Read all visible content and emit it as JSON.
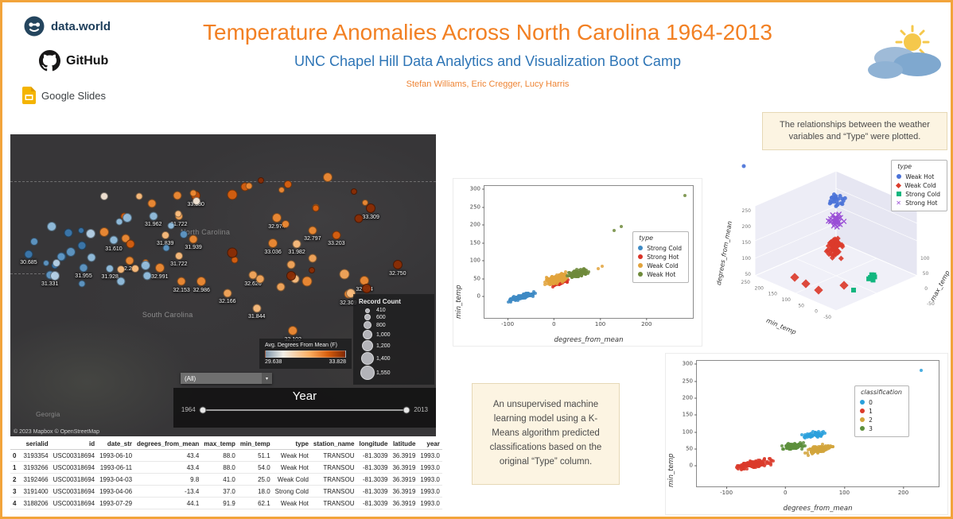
{
  "header": {
    "title": "Temperature Anomalies Across North Carolina 1964-2013",
    "subtitle": "UNC Chapel Hill Data Analytics and Visualization Boot Camp",
    "authors": "Stefan Williams, Eric Cregger, Lucy Harris"
  },
  "logos": {
    "dataworld": "data.world",
    "github": "GitHub",
    "google_slides": "Google Slides"
  },
  "notes": {
    "plot_note": "The relationships between the weather variables and “Type” were plotted.",
    "kmeans_note": "An unsupervised machine learning model using a K-Means algorithm predicted classifications based on the original “Type” column."
  },
  "map": {
    "attribution": "© 2023 Mapbox © OpenStreetMap",
    "labels": {
      "north_carolina": "North Carolina",
      "south_carolina": "South Carolina",
      "georgia": "Georgia"
    },
    "filter_value": "(All)",
    "slider": {
      "title": "Year",
      "min": "1964",
      "max": "2013"
    }
  },
  "table": {
    "columns": [
      "",
      "serialid",
      "id",
      "date_str",
      "degrees_from_mean",
      "max_temp",
      "min_temp",
      "type",
      "station_name",
      "longitude",
      "latitude",
      "year"
    ],
    "rows": [
      [
        "0",
        "3193354",
        "USC00318694",
        "1993-06-10",
        "43.4",
        "88.0",
        "51.1",
        "Weak Hot",
        "TRANSOU",
        "-81.3039",
        "36.3919",
        "1993.0"
      ],
      [
        "1",
        "3193266",
        "USC00318694",
        "1993-06-11",
        "43.4",
        "88.0",
        "54.0",
        "Weak Hot",
        "TRANSOU",
        "-81.3039",
        "36.3919",
        "1993.0"
      ],
      [
        "2",
        "3192466",
        "USC00318694",
        "1993-04-03",
        "9.8",
        "41.0",
        "25.0",
        "Weak Cold",
        "TRANSOU",
        "-81.3039",
        "36.3919",
        "1993.0"
      ],
      [
        "3",
        "3191400",
        "USC00318694",
        "1993-04-06",
        "-13.4",
        "37.0",
        "18.0",
        "Strong Cold",
        "TRANSOU",
        "-81.3039",
        "36.3919",
        "1993.0"
      ],
      [
        "4",
        "3188206",
        "USC00318694",
        "1993-07-29",
        "44.1",
        "91.9",
        "62.1",
        "Weak Hot",
        "TRANSOU",
        "-81.3039",
        "36.3919",
        "1993.0"
      ]
    ]
  },
  "chart_data": [
    {
      "id": "nc-anomaly-map",
      "type": "map-scatter",
      "size_legend": {
        "title": "Record Count",
        "values": [
          "410",
          "600",
          "800",
          "1,000",
          "1,200",
          "1,400",
          "1,550"
        ]
      },
      "color_legend": {
        "title": "Avg. Degrees From Mean (F)",
        "min": "29.638",
        "max": "33.828",
        "gradient": [
          "#7E96AA 0%",
          "#F2EFE8 22%",
          "#FDAE61 55%",
          "#D95F0E 78%",
          "#7F2704 100%"
        ]
      },
      "points": [
        {
          "v": "33.380",
          "x": 43.6,
          "y": 20.3,
          "c": "#C14E08",
          "s": 12
        },
        {
          "v": "33.309",
          "x": 84.7,
          "y": 24.5,
          "c": "#8C2D04",
          "s": 12
        },
        {
          "v": "31.962",
          "x": 33.6,
          "y": 27.1,
          "c": "#93BFE0",
          "s": 11
        },
        {
          "v": "31.722",
          "x": 39.6,
          "y": 27.1,
          "c": "#F6A75A",
          "s": 10
        },
        {
          "v": "32.974",
          "x": 62.6,
          "y": 27.6,
          "c": "#F08B33",
          "s": 12
        },
        {
          "v": "32.797",
          "x": 71.0,
          "y": 31.8,
          "c": "#F08B33",
          "s": 11
        },
        {
          "v": "33.203",
          "x": 76.6,
          "y": 33.4,
          "c": "#D95F0E",
          "s": 11
        },
        {
          "v": "31.610",
          "x": 24.3,
          "y": 35.0,
          "c": "#93BFE0",
          "s": 11
        },
        {
          "v": "31.839",
          "x": 36.4,
          "y": 33.4,
          "c": "#FDBE7E",
          "s": 10
        },
        {
          "v": "31.939",
          "x": 43.0,
          "y": 34.7,
          "c": "#F08B33",
          "s": 11
        },
        {
          "v": "33.036",
          "x": 61.7,
          "y": 36.1,
          "c": "#F08B33",
          "s": 12
        },
        {
          "v": "31.982",
          "x": 67.3,
          "y": 36.3,
          "c": "#FDBE7E",
          "s": 11
        },
        {
          "v": "30.685",
          "x": 4.3,
          "y": 39.7,
          "c": "#3B78AD",
          "s": 11
        },
        {
          "v": "32.265",
          "x": 28.0,
          "y": 41.8,
          "c": "#F08B33",
          "s": 11
        },
        {
          "v": "31.722",
          "x": 39.6,
          "y": 40.3,
          "c": "#FDBE7E",
          "s": 10
        },
        {
          "v": "32.991",
          "x": 35.1,
          "y": 44.2,
          "c": "#F08B33",
          "s": 12
        },
        {
          "v": "32.750",
          "x": 91.0,
          "y": 43.2,
          "c": "#8C2D04",
          "s": 12
        },
        {
          "v": "31.955",
          "x": 17.2,
          "y": 44.2,
          "c": "#5E97C6",
          "s": 11
        },
        {
          "v": "31.928",
          "x": 23.4,
          "y": 44.5,
          "c": "#93BFE0",
          "s": 10
        },
        {
          "v": "32.153",
          "x": 40.2,
          "y": 48.7,
          "c": "#F08B33",
          "s": 11
        },
        {
          "v": "32.986",
          "x": 44.9,
          "y": 48.7,
          "c": "#F08B33",
          "s": 12
        },
        {
          "v": "32.626",
          "x": 57.0,
          "y": 46.6,
          "c": "#F6A75A",
          "s": 11
        },
        {
          "v": "32.594",
          "x": 83.2,
          "y": 48.4,
          "c": "#F08B33",
          "s": 12
        },
        {
          "v": "31.331",
          "x": 9.3,
          "y": 46.6,
          "c": "#5E97C6",
          "s": 11
        },
        {
          "v": "32.166",
          "x": 51.0,
          "y": 52.6,
          "c": "#F6A75A",
          "s": 11
        },
        {
          "v": "32.309",
          "x": 79.4,
          "y": 52.9,
          "c": "#F08B33",
          "s": 11
        },
        {
          "v": "31.844",
          "x": 57.9,
          "y": 57.6,
          "c": "#FDBE7E",
          "s": 11
        },
        {
          "v": "32.102",
          "x": 66.4,
          "y": 65.0,
          "c": "#F08B33",
          "s": 12
        }
      ],
      "filler_regions": [
        {
          "x0": 2,
          "x1": 22,
          "y0": 30,
          "y1": 50,
          "n": 15,
          "seed": 11,
          "colors": [
            "#93BFE0",
            "#5E97C6",
            "#3B78AD",
            "#B8D4EA"
          ]
        },
        {
          "x0": 22,
          "x1": 50,
          "y0": 19,
          "y1": 50,
          "n": 22,
          "seed": 22,
          "colors": [
            "#F08B33",
            "#FDBE7E",
            "#93BFE0",
            "#F6E8D8",
            "#D95F0E",
            "#5E97C6"
          ]
        },
        {
          "x0": 50,
          "x1": 88,
          "y0": 20,
          "y1": 54,
          "n": 18,
          "seed": 33,
          "colors": [
            "#F08B33",
            "#FDBE7E",
            "#D95F0E",
            "#8C2D04",
            "#F6A75A"
          ]
        },
        {
          "x0": 36,
          "x1": 82,
          "y0": 13,
          "y1": 20,
          "n": 8,
          "seed": 44,
          "colors": [
            "#F08B33",
            "#D95F0E",
            "#8C2D04"
          ]
        }
      ]
    },
    {
      "id": "type-scatter",
      "type": "scatter",
      "xlabel": "degrees_from_mean",
      "ylabel": "min_temp",
      "xlim": [
        -150,
        300
      ],
      "ylim": [
        -60,
        310
      ],
      "xticks": [
        -100,
        0,
        100,
        200
      ],
      "yticks": [
        0,
        50,
        100,
        150,
        200,
        250,
        300
      ],
      "legend_title": "type",
      "seed": 101,
      "series": [
        {
          "name": "Strong Cold",
          "color": "#3E8AC4",
          "cluster": {
            "cx": -68,
            "cy": 0,
            "sx": 42,
            "sy": 9,
            "corr": 0.35,
            "n": 130
          }
        },
        {
          "name": "Strong Hot",
          "color": "#D93327",
          "cluster": {
            "cx": 12,
            "cy": 40,
            "sx": 22,
            "sy": 10,
            "corr": 0.3,
            "n": 70
          }
        },
        {
          "name": "Weak Cold",
          "color": "#E2A33C",
          "cluster": {
            "cx": 2,
            "cy": 48,
            "sx": 34,
            "sy": 16,
            "corr": 0.35,
            "n": 170
          },
          "extra": [
            [
              95,
              78
            ],
            [
              104,
              84
            ]
          ]
        },
        {
          "name": "Weak Hot",
          "color": "#6E8A3B",
          "cluster": {
            "cx": 52,
            "cy": 65,
            "sx": 30,
            "sy": 13,
            "corr": 0.25,
            "n": 120
          },
          "extra": [
            [
              130,
              185
            ],
            [
              146,
              197
            ],
            [
              282,
              284
            ]
          ]
        }
      ]
    },
    {
      "id": "type-scatter-3d",
      "type": "scatter",
      "projection": "3d",
      "xlabel": "min_temp",
      "ylabel": "max_temp",
      "zlabel": "degrees_from_mean",
      "legend_title": "type",
      "xticks": [
        250,
        200,
        150,
        100,
        50,
        0,
        -50
      ],
      "yticks": [
        100,
        50,
        0,
        -50
      ],
      "zticks": [
        250,
        200,
        150,
        100,
        50
      ],
      "series": [
        {
          "name": "Weak Hot",
          "color": "#4A72D8",
          "marker": "circle",
          "render": {
            "cluster": {
              "cx": 151,
              "cy": 62,
              "sx": 13,
              "sy": 11,
              "n": 22
            },
            "extra": [
              [
                34,
                20
              ]
            ],
            "size": 5
          }
        },
        {
          "name": "Weak Cold",
          "color": "#DB3B2B",
          "marker": "diamond",
          "render": {
            "cluster": {
              "cx": 148,
              "cy": 122,
              "sx": 16,
              "sy": 19,
              "n": 55
            },
            "extra": [
              [
                112,
                168
              ],
              [
                128,
                176
              ],
              [
                98,
                160
              ],
              [
                160,
                170
              ]
            ],
            "size": 5,
            "extra_size": 8
          }
        },
        {
          "name": "Strong Cold",
          "color": "#12B67F",
          "marker": "square",
          "render": {
            "cluster": {
              "cx": 196,
              "cy": 158,
              "sx": 9,
              "sy": 8,
              "n": 8
            },
            "extra": [
              [
                172,
                176
              ]
            ],
            "size": 6
          }
        },
        {
          "name": "Strong Hot",
          "color": "#9A4FD6",
          "marker": "x",
          "render": {
            "cluster": {
              "cx": 150,
              "cy": 88,
              "sx": 14,
              "sy": 10,
              "n": 30
            },
            "size": 6
          }
        }
      ]
    },
    {
      "id": "classification-scatter",
      "type": "scatter",
      "xlabel": "degrees_from_mean",
      "ylabel": "min_temp",
      "xlim": [
        -150,
        260
      ],
      "ylim": [
        -60,
        310
      ],
      "xticks": [
        -100,
        0,
        100,
        200
      ],
      "yticks": [
        0,
        50,
        100,
        150,
        200,
        250,
        300
      ],
      "legend_title": "classification",
      "seed": 301,
      "series": [
        {
          "name": "0",
          "color": "#2AA0DC",
          "cluster": {
            "cx": 50,
            "cy": 92,
            "sx": 26,
            "sy": 11,
            "corr": 0.15,
            "n": 60
          },
          "extra": [
            [
              230,
              283
            ]
          ]
        },
        {
          "name": "1",
          "color": "#DB3B2B",
          "cluster": {
            "cx": -55,
            "cy": 5,
            "sx": 40,
            "sy": 14,
            "corr": 0.32,
            "n": 150
          }
        },
        {
          "name": "2",
          "color": "#D2A53C",
          "cluster": {
            "cx": 58,
            "cy": 50,
            "sx": 30,
            "sy": 15,
            "corr": 0.3,
            "n": 130
          },
          "extra": [
            [
              122,
              124
            ],
            [
              140,
              118
            ]
          ]
        },
        {
          "name": "3",
          "color": "#5D8F3C",
          "cluster": {
            "cx": 15,
            "cy": 58,
            "sx": 24,
            "sy": 13,
            "corr": 0.25,
            "n": 110
          }
        }
      ]
    }
  ]
}
